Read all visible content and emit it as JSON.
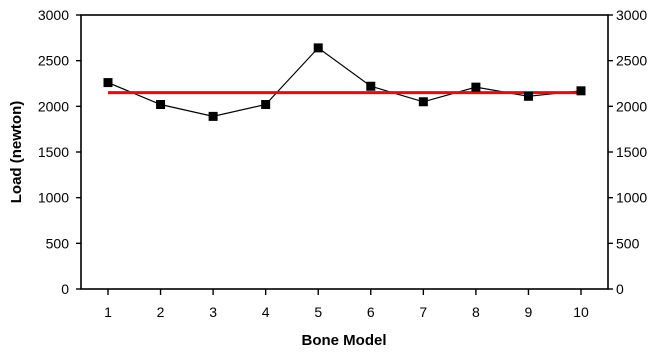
{
  "chart_data": {
    "type": "line",
    "title": "",
    "xlabel": "Bone Model",
    "ylabel": "Load (newton)",
    "categories": [
      "1",
      "2",
      "3",
      "4",
      "5",
      "6",
      "7",
      "8",
      "9",
      "10"
    ],
    "series": [
      {
        "values": [
          2260,
          2020,
          1890,
          2020,
          2640,
          2220,
          2050,
          2210,
          2110,
          2170
        ],
        "color": "#000000",
        "marker": "square"
      }
    ],
    "reference_line": {
      "value": 2150,
      "color": "#ff0000"
    },
    "ylim": [
      0,
      3000
    ],
    "yticks": [
      "0",
      "500",
      "1000",
      "1500",
      "2000",
      "2500",
      "3000"
    ],
    "right_axis_ticks": [
      "0",
      "500",
      "1000",
      "1500",
      "2000",
      "2500",
      "3000"
    ],
    "grid": false,
    "legend": "none"
  }
}
